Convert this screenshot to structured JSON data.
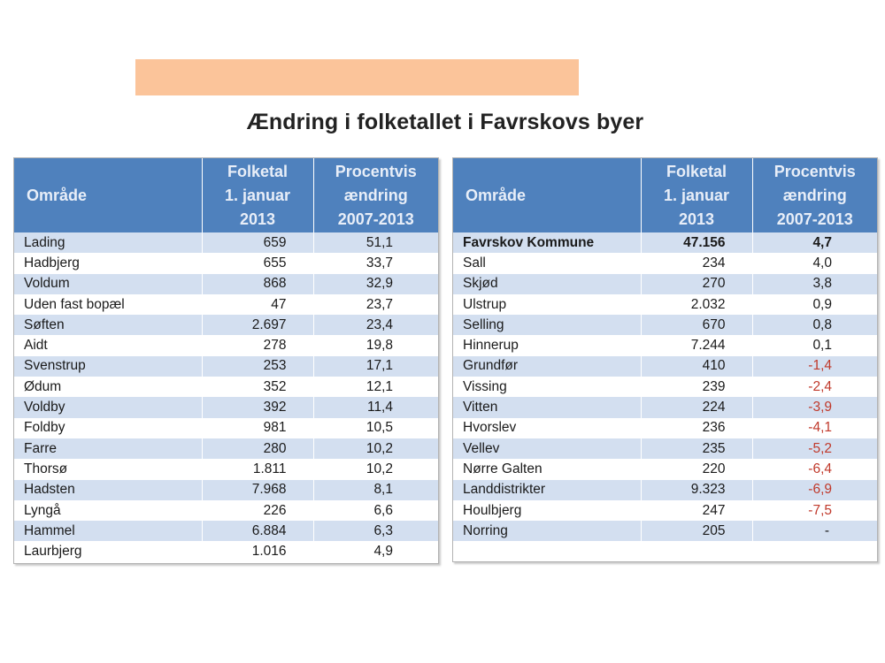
{
  "title": "Ændring i folketallet i Favrskovs byer",
  "header": {
    "area": "Område",
    "population": [
      "Folketal",
      "1. januar",
      "2013"
    ],
    "change": [
      "Procentvis",
      "ændring",
      "2007-2013"
    ]
  },
  "left_rows": [
    {
      "name": "Lading",
      "population": "659",
      "change": "51,1"
    },
    {
      "name": "Hadbjerg",
      "population": "655",
      "change": "33,7"
    },
    {
      "name": "Voldum",
      "population": "868",
      "change": "32,9"
    },
    {
      "name": "Uden fast bopæl",
      "population": "47",
      "change": "23,7"
    },
    {
      "name": "Søften",
      "population": "2.697",
      "change": "23,4"
    },
    {
      "name": "Aidt",
      "population": "278",
      "change": "19,8"
    },
    {
      "name": "Svenstrup",
      "population": "253",
      "change": "17,1"
    },
    {
      "name": "Ødum",
      "population": "352",
      "change": "12,1"
    },
    {
      "name": "Voldby",
      "population": "392",
      "change": "11,4"
    },
    {
      "name": "Foldby",
      "population": "981",
      "change": "10,5"
    },
    {
      "name": "Farre",
      "population": "280",
      "change": "10,2"
    },
    {
      "name": "Thorsø",
      "population": "1.811",
      "change": "10,2"
    },
    {
      "name": "Hadsten",
      "population": "7.968",
      "change": "8,1"
    },
    {
      "name": "Lyngå",
      "population": "226",
      "change": "6,6"
    },
    {
      "name": "Hammel",
      "population": "6.884",
      "change": "6,3"
    },
    {
      "name": "Laurbjerg",
      "population": "1.016",
      "change": "4,9"
    }
  ],
  "right_rows": [
    {
      "name": "Favrskov Kommune",
      "population": "47.156",
      "change": "4,7",
      "bold": true
    },
    {
      "name": "Sall",
      "population": "234",
      "change": "4,0"
    },
    {
      "name": "Skjød",
      "population": "270",
      "change": "3,8"
    },
    {
      "name": "Ulstrup",
      "population": "2.032",
      "change": "0,9"
    },
    {
      "name": "Selling",
      "population": "670",
      "change": "0,8"
    },
    {
      "name": "Hinnerup",
      "population": "7.244",
      "change": "0,1"
    },
    {
      "name": "Grundfør",
      "population": "410",
      "change": "-1,4",
      "negative": true
    },
    {
      "name": "Vissing",
      "population": "239",
      "change": "-2,4",
      "negative": true
    },
    {
      "name": "Vitten",
      "population": "224",
      "change": "-3,9",
      "negative": true
    },
    {
      "name": "Hvorslev",
      "population": "236",
      "change": "-4,1",
      "negative": true
    },
    {
      "name": "Vellev",
      "population": "235",
      "change": "-5,2",
      "negative": true
    },
    {
      "name": "Nørre Galten",
      "population": "220",
      "change": "-6,4",
      "negative": true
    },
    {
      "name": "Landdistrikter",
      "population": "9.323",
      "change": "-6,9",
      "negative": true
    },
    {
      "name": "Houlbjerg",
      "population": "247",
      "change": "-7,5",
      "negative": true
    },
    {
      "name": "Norring",
      "population": "205",
      "change": "-"
    }
  ],
  "colors": {
    "banner": "#fbc49a",
    "header": "#4f81bd",
    "stripe": "#d3dff0",
    "negative": "#c0392b"
  }
}
